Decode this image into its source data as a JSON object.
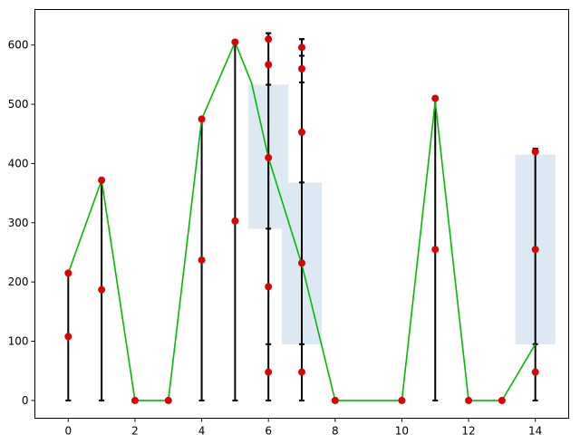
{
  "chart_data": {
    "type": "line",
    "title": "",
    "xlabel": "",
    "ylabel": "",
    "xlim": [
      -1,
      15
    ],
    "ylim": [
      -30,
      660
    ],
    "grid": false,
    "legend": null,
    "x_ticks": [
      0,
      2,
      4,
      6,
      8,
      10,
      12,
      14
    ],
    "y_ticks": [
      0,
      100,
      200,
      300,
      400,
      500,
      600
    ],
    "line": {
      "color": "#00bb00",
      "x": [
        0,
        1,
        2,
        3,
        4,
        5,
        5.5,
        6,
        7,
        8,
        10,
        11,
        12,
        13,
        14
      ],
      "y": [
        215,
        372,
        0,
        0,
        475,
        605,
        535,
        410,
        230,
        0,
        0,
        505,
        0,
        0,
        95
      ]
    },
    "points": {
      "color": "#dd0000",
      "x": [
        0,
        0,
        1,
        1,
        2,
        3,
        4,
        4,
        5,
        5,
        6,
        6,
        6,
        6,
        6,
        7,
        7,
        7,
        7,
        7,
        8,
        10,
        11,
        11,
        12,
        13,
        14,
        14,
        14
      ],
      "y": [
        108,
        215,
        187,
        372,
        0,
        0,
        237,
        475,
        303,
        605,
        48,
        192,
        410,
        567,
        610,
        48,
        232,
        453,
        560,
        596,
        0,
        0,
        255,
        510,
        0,
        0,
        48,
        255,
        420
      ]
    },
    "error_bars": {
      "color": "#000000",
      "bars": [
        {
          "x": 0,
          "low": 0,
          "high": 215,
          "caps": []
        },
        {
          "x": 1,
          "low": 0,
          "high": 372,
          "caps": []
        },
        {
          "x": 4,
          "low": 0,
          "high": 475,
          "caps": []
        },
        {
          "x": 5,
          "low": 0,
          "high": 605,
          "caps": []
        },
        {
          "x": 6,
          "low": 0,
          "high": 620,
          "caps": [
            95,
            290,
            533,
            620
          ]
        },
        {
          "x": 7,
          "low": 0,
          "high": 610,
          "caps": [
            95,
            368,
            537,
            582,
            610
          ]
        },
        {
          "x": 11,
          "low": 0,
          "high": 510,
          "caps": []
        },
        {
          "x": 14,
          "low": 0,
          "high": 425,
          "caps": [
            95,
            420,
            425
          ]
        }
      ]
    },
    "shaded_regions": {
      "color": "#dce8f4",
      "regions": [
        {
          "x0": 5.4,
          "x1": 6.6,
          "y0": 290,
          "y1": 533
        },
        {
          "x0": 6.4,
          "x1": 7.6,
          "y0": 95,
          "y1": 368
        },
        {
          "x0": 13.4,
          "x1": 14.6,
          "y0": 95,
          "y1": 415
        }
      ]
    }
  }
}
